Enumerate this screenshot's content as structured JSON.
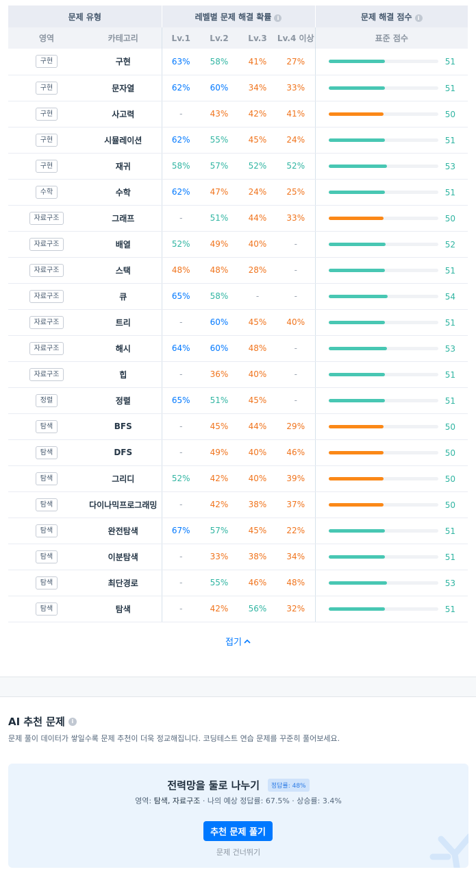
{
  "table": {
    "group_headers": [
      "문제 유형",
      "레벨별 문제 해결 확률",
      "문제 해결 점수"
    ],
    "sub_headers": [
      "영역",
      "카테고리",
      "Lv.1",
      "Lv.2",
      "Lv.3",
      "Lv.4 이상",
      "표준 점수"
    ],
    "rows": [
      {
        "area": "구현",
        "category": "구현",
        "lv1": "63%",
        "lv2": "58%",
        "lv3": "41%",
        "lv4": "27%",
        "score": "51",
        "bar": 0.51
      },
      {
        "area": "구현",
        "category": "문자열",
        "lv1": "62%",
        "lv2": "60%",
        "lv3": "34%",
        "lv4": "33%",
        "score": "51",
        "bar": 0.51
      },
      {
        "area": "구현",
        "category": "사고력",
        "lv1": "-",
        "lv2": "43%",
        "lv3": "42%",
        "lv4": "41%",
        "score": "50",
        "bar": 0.5
      },
      {
        "area": "구현",
        "category": "시뮬레이션",
        "lv1": "62%",
        "lv2": "55%",
        "lv3": "45%",
        "lv4": "24%",
        "score": "51",
        "bar": 0.51
      },
      {
        "area": "구현",
        "category": "재귀",
        "lv1": "58%",
        "lv2": "57%",
        "lv3": "52%",
        "lv4": "52%",
        "score": "53",
        "bar": 0.53
      },
      {
        "area": "수학",
        "category": "수학",
        "lv1": "62%",
        "lv2": "47%",
        "lv3": "24%",
        "lv4": "25%",
        "score": "51",
        "bar": 0.51
      },
      {
        "area": "자료구조",
        "category": "그래프",
        "lv1": "-",
        "lv2": "51%",
        "lv3": "44%",
        "lv4": "33%",
        "score": "50",
        "bar": 0.5
      },
      {
        "area": "자료구조",
        "category": "배열",
        "lv1": "52%",
        "lv2": "49%",
        "lv3": "40%",
        "lv4": "-",
        "score": "52",
        "bar": 0.52
      },
      {
        "area": "자료구조",
        "category": "스택",
        "lv1": "48%",
        "lv2": "48%",
        "lv3": "28%",
        "lv4": "-",
        "score": "51",
        "bar": 0.51
      },
      {
        "area": "자료구조",
        "category": "큐",
        "lv1": "65%",
        "lv2": "58%",
        "lv3": "-",
        "lv4": "-",
        "score": "54",
        "bar": 0.54
      },
      {
        "area": "자료구조",
        "category": "트리",
        "lv1": "-",
        "lv2": "60%",
        "lv3": "45%",
        "lv4": "40%",
        "score": "51",
        "bar": 0.51
      },
      {
        "area": "자료구조",
        "category": "해시",
        "lv1": "64%",
        "lv2": "60%",
        "lv3": "48%",
        "lv4": "-",
        "score": "53",
        "bar": 0.53
      },
      {
        "area": "자료구조",
        "category": "힙",
        "lv1": "-",
        "lv2": "36%",
        "lv3": "40%",
        "lv4": "-",
        "score": "51",
        "bar": 0.51
      },
      {
        "area": "정렬",
        "category": "정렬",
        "lv1": "65%",
        "lv2": "51%",
        "lv3": "45%",
        "lv4": "-",
        "score": "51",
        "bar": 0.51
      },
      {
        "area": "탐색",
        "category": "BFS",
        "lv1": "-",
        "lv2": "45%",
        "lv3": "44%",
        "lv4": "29%",
        "score": "50",
        "bar": 0.5
      },
      {
        "area": "탐색",
        "category": "DFS",
        "lv1": "-",
        "lv2": "49%",
        "lv3": "40%",
        "lv4": "46%",
        "score": "50",
        "bar": 0.5
      },
      {
        "area": "탐색",
        "category": "그리디",
        "lv1": "52%",
        "lv2": "42%",
        "lv3": "40%",
        "lv4": "39%",
        "score": "50",
        "bar": 0.5
      },
      {
        "area": "탐색",
        "category": "다이나믹프로그래밍",
        "lv1": "-",
        "lv2": "42%",
        "lv3": "38%",
        "lv4": "37%",
        "score": "50",
        "bar": 0.5
      },
      {
        "area": "탐색",
        "category": "완전탐색",
        "lv1": "67%",
        "lv2": "57%",
        "lv3": "45%",
        "lv4": "22%",
        "score": "51",
        "bar": 0.51
      },
      {
        "area": "탐색",
        "category": "이분탐색",
        "lv1": "-",
        "lv2": "33%",
        "lv3": "38%",
        "lv4": "34%",
        "score": "51",
        "bar": 0.51
      },
      {
        "area": "탐색",
        "category": "최단경로",
        "lv1": "-",
        "lv2": "55%",
        "lv3": "46%",
        "lv4": "48%",
        "score": "53",
        "bar": 0.53
      },
      {
        "area": "탐색",
        "category": "탐색",
        "lv1": "-",
        "lv2": "42%",
        "lv3": "56%",
        "lv4": "32%",
        "score": "51",
        "bar": 0.51
      }
    ]
  },
  "collapse_label": "접기",
  "ai": {
    "title": "AI 추천 문제",
    "description": "문제 풀이 데이터가 쌓일수록 문제 추천이 더욱 정교해집니다. 코딩테스트 연습 문제를 꾸준히 풀어보세요.",
    "problem_title": "전력망을 둘로 나누기",
    "rate_badge": "정답률: 48%",
    "meta_area_label": "영역: ",
    "meta_area": "탐색, 자료구조",
    "meta_rest": " · 나의 예상 정답률: 67.5% · 상승률: 3.4%",
    "primary_button": "추천 문제 풀기",
    "skip_link": "문제 건너뛰기"
  },
  "colors": {
    "accent": "#0078ff",
    "bar_normal": "#48c7b3",
    "bar_low": "#fb8817"
  }
}
